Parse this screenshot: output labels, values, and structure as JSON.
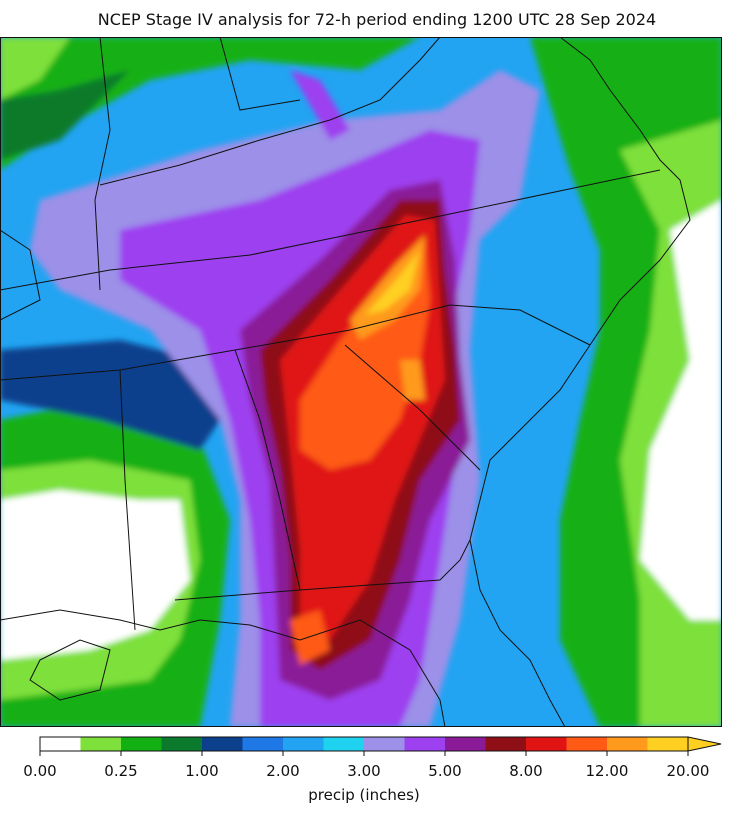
{
  "title": "NCEP Stage IV analysis for 72-h period ending 1200 UTC 28 Sep 2024",
  "colorbar": {
    "label": "precip (inches)",
    "colors": [
      "#ffffff",
      "#7ee03a",
      "#12b012",
      "#0b7a2c",
      "#0c3f8c",
      "#1e78e6",
      "#22a4f2",
      "#1fd2f0",
      "#9c90e8",
      "#9d40f0",
      "#8a1a98",
      "#8e1016",
      "#e01414",
      "#ff5a16",
      "#ff9a1c",
      "#ffd022"
    ],
    "ticks": [
      {
        "value": 0,
        "label": "0.00"
      },
      {
        "value": 0.25,
        "label": "0.25"
      },
      {
        "value": 1,
        "label": "1.00"
      },
      {
        "value": 2,
        "label": "2.00"
      },
      {
        "value": 3,
        "label": "3.00"
      },
      {
        "value": 5,
        "label": "5.00"
      },
      {
        "value": 8,
        "label": "8.00"
      },
      {
        "value": 12,
        "label": "12.00"
      },
      {
        "value": 20,
        "label": "20.00"
      }
    ]
  }
}
